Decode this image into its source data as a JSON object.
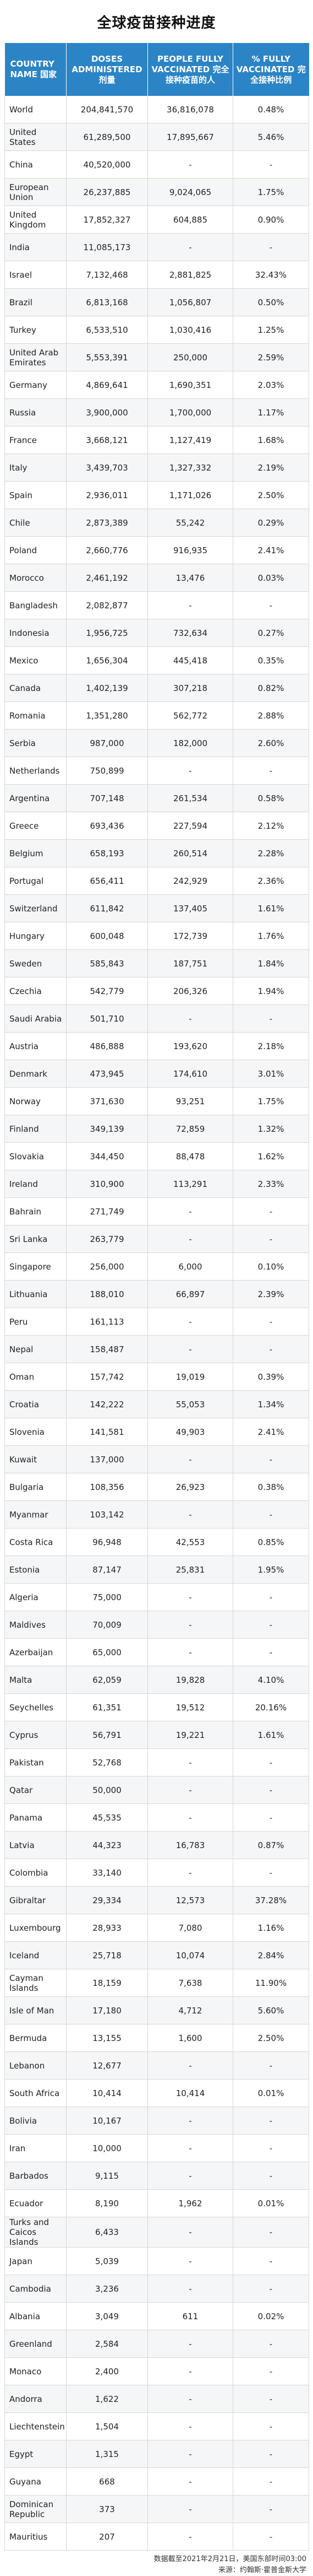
{
  "title": "全球疫苗接种进度",
  "header": {
    "country": "COUNTRY NAME 国家",
    "doses": "DOSES ADMINISTERED 剂量",
    "fully": "PEOPLE FULLY VACCINATED 完全接种疫苗的人",
    "percent": "% FULLY VACCINATED 完全接种比例"
  },
  "rows": [
    [
      "World",
      "204,841,570",
      "36,816,078",
      "0.48%"
    ],
    [
      "United States",
      "61,289,500",
      "17,895,667",
      "5.46%"
    ],
    [
      "China",
      "40,520,000",
      "-",
      "-"
    ],
    [
      "European Union",
      "26,237,885",
      "9,024,065",
      "1.75%"
    ],
    [
      "United Kingdom",
      "17,852,327",
      "604,885",
      "0.90%"
    ],
    [
      "India",
      "11,085,173",
      "-",
      "-"
    ],
    [
      "Israel",
      "7,132,468",
      "2,881,825",
      "32.43%"
    ],
    [
      "Brazil",
      "6,813,168",
      "1,056,807",
      "0.50%"
    ],
    [
      "Turkey",
      "6,533,510",
      "1,030,416",
      "1.25%"
    ],
    [
      "United Arab Emirates",
      "5,553,391",
      "250,000",
      "2.59%"
    ],
    [
      "Germany",
      "4,869,641",
      "1,690,351",
      "2.03%"
    ],
    [
      "Russia",
      "3,900,000",
      "1,700,000",
      "1.17%"
    ],
    [
      "France",
      "3,668,121",
      "1,127,419",
      "1.68%"
    ],
    [
      "Italy",
      "3,439,703",
      "1,327,332",
      "2.19%"
    ],
    [
      "Spain",
      "2,936,011",
      "1,171,026",
      "2.50%"
    ],
    [
      "Chile",
      "2,873,389",
      "55,242",
      "0.29%"
    ],
    [
      "Poland",
      "2,660,776",
      "916,935",
      "2.41%"
    ],
    [
      "Morocco",
      "2,461,192",
      "13,476",
      "0.03%"
    ],
    [
      "Bangladesh",
      "2,082,877",
      "-",
      "-"
    ],
    [
      "Indonesia",
      "1,956,725",
      "732,634",
      "0.27%"
    ],
    [
      "Mexico",
      "1,656,304",
      "445,418",
      "0.35%"
    ],
    [
      "Canada",
      "1,402,139",
      "307,218",
      "0.82%"
    ],
    [
      "Romania",
      "1,351,280",
      "562,772",
      "2.88%"
    ],
    [
      "Serbia",
      "987,000",
      "182,000",
      "2.60%"
    ],
    [
      "Netherlands",
      "750,899",
      "-",
      "-"
    ],
    [
      "Argentina",
      "707,148",
      "261,534",
      "0.58%"
    ],
    [
      "Greece",
      "693,436",
      "227,594",
      "2.12%"
    ],
    [
      "Belgium",
      "658,193",
      "260,514",
      "2.28%"
    ],
    [
      "Portugal",
      "656,411",
      "242,929",
      "2.36%"
    ],
    [
      "Switzerland",
      "611,842",
      "137,405",
      "1.61%"
    ],
    [
      "Hungary",
      "600,048",
      "172,739",
      "1.76%"
    ],
    [
      "Sweden",
      "585,843",
      "187,751",
      "1.84%"
    ],
    [
      "Czechia",
      "542,779",
      "206,326",
      "1.94%"
    ],
    [
      "Saudi Arabia",
      "501,710",
      "-",
      "-"
    ],
    [
      "Austria",
      "486,888",
      "193,620",
      "2.18%"
    ],
    [
      "Denmark",
      "473,945",
      "174,610",
      "3.01%"
    ],
    [
      "Norway",
      "371,630",
      "93,251",
      "1.75%"
    ],
    [
      "Finland",
      "349,139",
      "72,859",
      "1.32%"
    ],
    [
      "Slovakia",
      "344,450",
      "88,478",
      "1.62%"
    ],
    [
      "Ireland",
      "310,900",
      "113,291",
      "2.33%"
    ],
    [
      "Bahrain",
      "271,749",
      "-",
      "-"
    ],
    [
      "Sri Lanka",
      "263,779",
      "-",
      "-"
    ],
    [
      "Singapore",
      "256,000",
      "6,000",
      "0.10%"
    ],
    [
      "Lithuania",
      "188,010",
      "66,897",
      "2.39%"
    ],
    [
      "Peru",
      "161,113",
      "-",
      "-"
    ],
    [
      "Nepal",
      "158,487",
      "-",
      "-"
    ],
    [
      "Oman",
      "157,742",
      "19,019",
      "0.39%"
    ],
    [
      "Croatia",
      "142,222",
      "55,053",
      "1.34%"
    ],
    [
      "Slovenia",
      "141,581",
      "49,903",
      "2.41%"
    ],
    [
      "Kuwait",
      "137,000",
      "-",
      "-"
    ],
    [
      "Bulgaria",
      "108,356",
      "26,923",
      "0.38%"
    ],
    [
      "Myanmar",
      "103,142",
      "-",
      "-"
    ],
    [
      "Costa Rica",
      "96,948",
      "42,553",
      "0.85%"
    ],
    [
      "Estonia",
      "87,147",
      "25,831",
      "1.95%"
    ],
    [
      "Algeria",
      "75,000",
      "-",
      "-"
    ],
    [
      "Maldives",
      "70,009",
      "-",
      "-"
    ],
    [
      "Azerbaijan",
      "65,000",
      "-",
      "-"
    ],
    [
      "Malta",
      "62,059",
      "19,828",
      "4.10%"
    ],
    [
      "Seychelles",
      "61,351",
      "19,512",
      "20.16%"
    ],
    [
      "Cyprus",
      "56,791",
      "19,221",
      "1.61%"
    ],
    [
      "Pakistan",
      "52,768",
      "-",
      "-"
    ],
    [
      "Qatar",
      "50,000",
      "-",
      "-"
    ],
    [
      "Panama",
      "45,535",
      "-",
      "-"
    ],
    [
      "Latvia",
      "44,323",
      "16,783",
      "0.87%"
    ],
    [
      "Colombia",
      "33,140",
      "-",
      "-"
    ],
    [
      "Gibraltar",
      "29,334",
      "12,573",
      "37.28%"
    ],
    [
      "Luxembourg",
      "28,933",
      "7,080",
      "1.16%"
    ],
    [
      "Iceland",
      "25,718",
      "10,074",
      "2.84%"
    ],
    [
      "Cayman Islands",
      "18,159",
      "7,638",
      "11.90%"
    ],
    [
      "Isle of Man",
      "17,180",
      "4,712",
      "5.60%"
    ],
    [
      "Bermuda",
      "13,155",
      "1,600",
      "2.50%"
    ],
    [
      "Lebanon",
      "12,677",
      "-",
      "-"
    ],
    [
      "South Africa",
      "10,414",
      "10,414",
      "0.01%"
    ],
    [
      "Bolivia",
      "10,167",
      "-",
      "-"
    ],
    [
      "Iran",
      "10,000",
      "-",
      "-"
    ],
    [
      "Barbados",
      "9,115",
      "-",
      "-"
    ],
    [
      "Ecuador",
      "8,190",
      "1,962",
      "0.01%"
    ],
    [
      "Turks and Caicos Islands",
      "6,433",
      "-",
      "-"
    ],
    [
      "Japan",
      "5,039",
      "-",
      "-"
    ],
    [
      "Cambodia",
      "3,236",
      "-",
      "-"
    ],
    [
      "Albania",
      "3,049",
      "611",
      "0.02%"
    ],
    [
      "Greenland",
      "2,584",
      "-",
      "-"
    ],
    [
      "Monaco",
      "2,400",
      "-",
      "-"
    ],
    [
      "Andorra",
      "1,622",
      "-",
      "-"
    ],
    [
      "Liechtenstein",
      "1,504",
      "-",
      "-"
    ],
    [
      "Egypt",
      "1,315",
      "-",
      "-"
    ],
    [
      "Guyana",
      "668",
      "-",
      "-"
    ],
    [
      "Dominican Republic",
      "373",
      "-",
      "-"
    ],
    [
      "Mauritius",
      "207",
      "-",
      "-"
    ]
  ],
  "footer": {
    "line1": "数据截至2021年2月21日，美国东部时间03:00",
    "line2": "来源：约翰斯·霍普金斯大学"
  }
}
